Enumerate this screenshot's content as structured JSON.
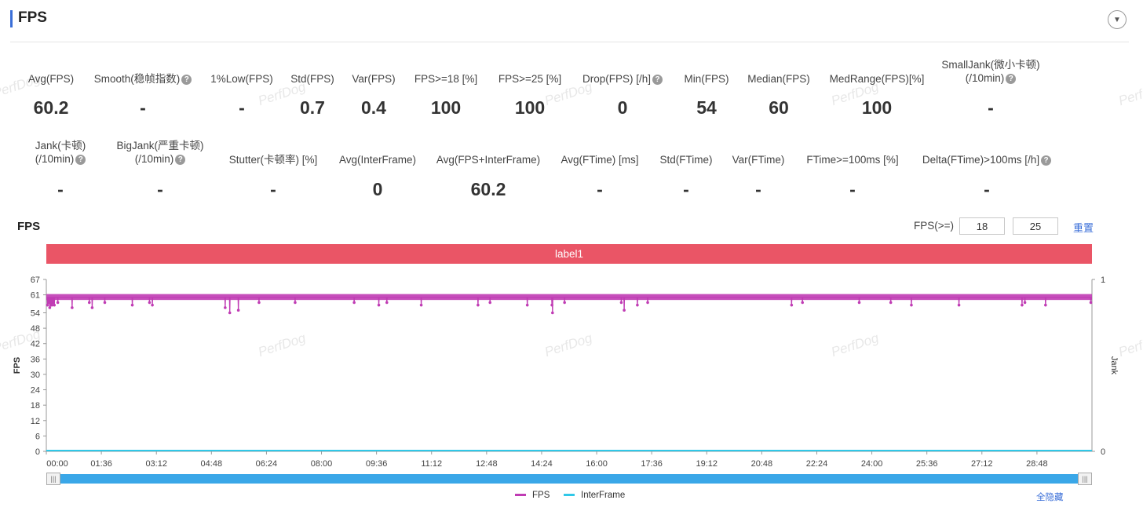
{
  "header": {
    "title": "FPS"
  },
  "watermark": "PerfDog",
  "metrics_row1": [
    {
      "label": "Avg(FPS)",
      "value": "60.2",
      "help": false
    },
    {
      "label": "Smooth(稳帧指数)",
      "value": "-",
      "help": true
    },
    {
      "label": "1%Low(FPS)",
      "value": "-",
      "help": false
    },
    {
      "label": "Std(FPS)",
      "value": "0.7",
      "help": false
    },
    {
      "label": "Var(FPS)",
      "value": "0.4",
      "help": false
    },
    {
      "label": "FPS>=18 [%]",
      "value": "100",
      "help": false
    },
    {
      "label": "FPS>=25 [%]",
      "value": "100",
      "help": false
    },
    {
      "label": "Drop(FPS) [/h]",
      "value": "0",
      "help": true
    },
    {
      "label": "Min(FPS)",
      "value": "54",
      "help": false
    },
    {
      "label": "Median(FPS)",
      "value": "60",
      "help": false
    },
    {
      "label": "MedRange(FPS)[%]",
      "value": "100",
      "help": false
    },
    {
      "label": "SmallJank(微小卡顿)",
      "label2": "(/10min)",
      "value": "-",
      "help": true
    }
  ],
  "metrics_row2": [
    {
      "label": "Jank(卡顿)",
      "label2": "(/10min)",
      "value": "-",
      "help": true
    },
    {
      "label": "BigJank(严重卡顿)",
      "label2": "(/10min)",
      "value": "-",
      "help": true
    },
    {
      "label": "Stutter(卡顿率) [%]",
      "value": "-",
      "help": false
    },
    {
      "label": "Avg(InterFrame)",
      "value": "0",
      "help": false
    },
    {
      "label": "Avg(FPS+InterFrame)",
      "value": "60.2",
      "help": false
    },
    {
      "label": "Avg(FTime) [ms]",
      "value": "-",
      "help": false
    },
    {
      "label": "Std(FTime)",
      "value": "-",
      "help": false
    },
    {
      "label": "Var(FTime)",
      "value": "-",
      "help": false
    },
    {
      "label": "FTime>=100ms [%]",
      "value": "-",
      "help": false
    },
    {
      "label": "Delta(FTime)>100ms [/h]",
      "value": "-",
      "help": true
    }
  ],
  "chart_section": {
    "title": "FPS",
    "threshold_label": "FPS(>=)",
    "threshold_1": "18",
    "threshold_2": "25",
    "reset_label": "重置",
    "band_label": "label1",
    "legend_fps": "FPS",
    "legend_interframe": "InterFrame",
    "hide_all_label": "全隐藏"
  },
  "colors": {
    "fps": "#c03cb4",
    "interframe": "#30c8e8",
    "band": "#ea5566",
    "accent": "#3b6fd8",
    "slider": "#3aa7e8"
  },
  "icons": {
    "collapse": "chevron-down-icon",
    "help": "question-circle-icon"
  },
  "chart_data": {
    "type": "line",
    "ylabel": "FPS",
    "y2label": "Jank",
    "ylim": [
      0,
      67
    ],
    "yticks": [
      0,
      6,
      12,
      18,
      24,
      30,
      36,
      42,
      48,
      54,
      61,
      67
    ],
    "y2lim": [
      0,
      1
    ],
    "y2ticks": [
      0,
      1
    ],
    "xlabels": [
      "00:00",
      "01:36",
      "03:12",
      "04:48",
      "06:24",
      "08:00",
      "09:36",
      "11:12",
      "12:48",
      "14:24",
      "16:00",
      "17:36",
      "19:12",
      "20:48",
      "22:24",
      "24:00",
      "25:36",
      "27:12",
      "28:48"
    ],
    "x_range_seconds": [
      0,
      1824
    ],
    "series": [
      {
        "name": "FPS",
        "baseline": 60,
        "dips": [
          [
            2,
            57
          ],
          [
            4,
            58
          ],
          [
            6,
            56
          ],
          [
            8,
            57
          ],
          [
            10,
            57
          ],
          [
            12,
            58
          ],
          [
            14,
            57
          ],
          [
            20,
            58
          ],
          [
            45,
            56
          ],
          [
            75,
            58
          ],
          [
            80,
            56
          ],
          [
            102,
            58
          ],
          [
            150,
            57
          ],
          [
            180,
            58
          ],
          [
            185,
            57
          ],
          [
            312,
            56
          ],
          [
            320,
            54
          ],
          [
            335,
            55
          ],
          [
            371,
            58
          ],
          [
            434,
            58
          ],
          [
            537,
            58
          ],
          [
            580,
            57
          ],
          [
            594,
            58
          ],
          [
            654,
            57
          ],
          [
            753,
            57
          ],
          [
            774,
            58
          ],
          [
            839,
            57
          ],
          [
            882,
            57
          ],
          [
            883,
            54
          ],
          [
            904,
            58
          ],
          [
            1003,
            58
          ],
          [
            1008,
            55
          ],
          [
            1031,
            57
          ],
          [
            1049,
            58
          ],
          [
            1300,
            57
          ],
          [
            1319,
            58
          ],
          [
            1418,
            58
          ],
          [
            1473,
            58
          ],
          [
            1509,
            57
          ],
          [
            1592,
            57
          ],
          [
            1702,
            57
          ],
          [
            1707,
            58
          ],
          [
            1743,
            57
          ],
          [
            1822,
            58
          ]
        ]
      },
      {
        "name": "InterFrame",
        "value": 0
      }
    ],
    "legend_position": "bottom-center"
  }
}
